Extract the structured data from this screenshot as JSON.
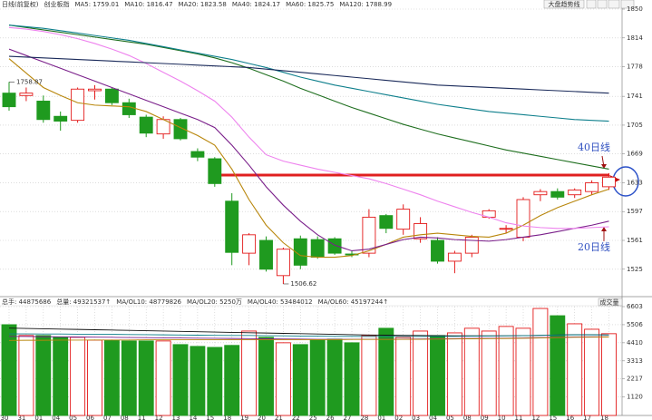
{
  "chart_data": [
    {
      "type": "candlestick",
      "header": [
        "日线(前复权)",
        "创业板指"
      ],
      "toolbar": [
        "大盘趋势线"
      ],
      "categories": [
        "30",
        "31",
        "01",
        "04",
        "05",
        "06",
        "07",
        "08",
        "11",
        "12",
        "13",
        "14",
        "15",
        "18",
        "19",
        "20",
        "21",
        "22",
        "25",
        "26",
        "27",
        "28",
        "01",
        "02",
        "03",
        "04",
        "05",
        "08",
        "09",
        "10",
        "11",
        "12",
        "15",
        "16",
        "17",
        "18"
      ],
      "open": [
        1745,
        1742,
        1735,
        1716,
        1711,
        1748,
        1750,
        1733,
        1715,
        1694,
        1712,
        1672,
        1663,
        1610,
        1545,
        1561,
        1517,
        1563,
        1562,
        1563,
        1544,
        1545,
        1592,
        1575,
        1563,
        1561,
        1535,
        1545,
        1590,
        1575,
        1565,
        1618,
        1622,
        1618,
        1622,
        1628
      ],
      "high": [
        1758.87,
        1752,
        1742,
        1722,
        1752,
        1755,
        1752,
        1738,
        1718,
        1716,
        1714,
        1676,
        1665,
        1620,
        1570,
        1566,
        1552,
        1567,
        1566,
        1565,
        1548,
        1600,
        1594,
        1606,
        1590,
        1565,
        1548,
        1568,
        1600,
        1580,
        1615,
        1625,
        1626,
        1626,
        1636,
        1645
      ],
      "low": [
        1723,
        1735,
        1708,
        1698,
        1708,
        1737,
        1730,
        1714,
        1690,
        1688,
        1686,
        1660,
        1628,
        1530,
        1530,
        1522,
        1506.62,
        1525,
        1538,
        1543,
        1540,
        1540,
        1570,
        1568,
        1558,
        1532,
        1520,
        1540,
        1588,
        1570,
        1560,
        1610,
        1612,
        1614,
        1618,
        1624
      ],
      "close": [
        1728,
        1745,
        1712,
        1710,
        1750,
        1750,
        1733,
        1718,
        1695,
        1712,
        1688,
        1665,
        1632,
        1546,
        1568,
        1525,
        1550,
        1530,
        1540,
        1545,
        1543,
        1590,
        1576,
        1600,
        1582,
        1535,
        1545,
        1565,
        1598,
        1576,
        1612,
        1622,
        1615,
        1624,
        1633,
        1640
      ],
      "up_color": "#e31a1a",
      "down_color": "#1f9a1f",
      "series": [
        {
          "name": "MA5: 1759.01",
          "color": "#b8860b",
          "values": [
            1788,
            1770,
            1752,
            1742,
            1733,
            1730,
            1729,
            1728,
            1722,
            1712,
            1702,
            1692,
            1680,
            1650,
            1612,
            1580,
            1558,
            1542,
            1540,
            1540,
            1542,
            1548,
            1556,
            1565,
            1568,
            1570,
            1568,
            1566,
            1565,
            1570,
            1580,
            1592,
            1602,
            1610,
            1618,
            1625
          ]
        },
        {
          "name": "MA10: 1816.47",
          "color": "#7a1f8a",
          "values": [
            1800,
            1792,
            1784,
            1776,
            1768,
            1760,
            1752,
            1744,
            1736,
            1728,
            1720,
            1712,
            1702,
            1680,
            1655,
            1628,
            1605,
            1585,
            1568,
            1555,
            1548,
            1550,
            1556,
            1562,
            1565,
            1564,
            1562,
            1561,
            1560,
            1562,
            1565,
            1568,
            1572,
            1576,
            1580,
            1585
          ]
        },
        {
          "name": "MA20: 1823.58",
          "color": "#ee82ee",
          "values": [
            1827,
            1825,
            1822,
            1818,
            1813,
            1807,
            1800,
            1792,
            1782,
            1771,
            1760,
            1748,
            1735,
            1715,
            1690,
            1668,
            1660,
            1655,
            1650,
            1646,
            1642,
            1638,
            1632,
            1625,
            1618,
            1610,
            1603,
            1596,
            1590,
            1583,
            1579,
            1577,
            1576,
            1576,
            1577,
            1578
          ]
        },
        {
          "name": "MA40: 1824.17",
          "color": "#1e6e1e",
          "values": [
            1830,
            1827,
            1824,
            1821,
            1818,
            1815,
            1812,
            1809,
            1806,
            1802,
            1798,
            1794,
            1789,
            1783,
            1776,
            1768,
            1760,
            1751,
            1743,
            1735,
            1727,
            1720,
            1713,
            1706,
            1700,
            1694,
            1689,
            1684,
            1679,
            1674,
            1670,
            1666,
            1662,
            1658,
            1654,
            1650
          ]
        },
        {
          "name": "MA60: 1825.75",
          "color": "#0e7f8c",
          "values": [
            1830,
            1828,
            1826,
            1823,
            1820,
            1817,
            1814,
            1811,
            1807,
            1803,
            1799,
            1795,
            1791,
            1787,
            1782,
            1777,
            1771,
            1765,
            1760,
            1755,
            1751,
            1747,
            1743,
            1739,
            1735,
            1731,
            1728,
            1725,
            1722,
            1720,
            1718,
            1716,
            1714,
            1712,
            1711,
            1710
          ]
        },
        {
          "name": "MA120: 1788.99",
          "color": "#1a2a5a",
          "values": [
            1791,
            1790,
            1789,
            1788,
            1787,
            1786,
            1785,
            1784,
            1783,
            1782,
            1781,
            1780,
            1779,
            1778,
            1777,
            1775,
            1773,
            1771,
            1769,
            1767,
            1765,
            1763,
            1761,
            1759,
            1757,
            1755,
            1754,
            1753,
            1752,
            1751,
            1750,
            1749,
            1748,
            1747,
            1746,
            1745
          ]
        }
      ],
      "annotations": [
        "40日线",
        "20日线"
      ],
      "ylim": [
        1493,
        1850
      ],
      "yticks": [
        1850,
        1814,
        1778,
        1741,
        1705,
        1669,
        1633,
        1597,
        1561,
        1525
      ],
      "grid": true
    },
    {
      "type": "bar",
      "header": [
        "总手: 44875686",
        "总量: 49321537↑"
      ],
      "selector": "成交量",
      "values": [
        5506,
        4850,
        4850,
        4740,
        4740,
        4570,
        4570,
        4520,
        4520,
        4520,
        4300,
        4190,
        4130,
        4250,
        5120,
        4740,
        4410,
        4300,
        4570,
        4630,
        4410,
        4850,
        5290,
        4740,
        5120,
        4850,
        5010,
        5290,
        5120,
        5400,
        5290,
        6490,
        6050,
        5560,
        5230,
        4960
      ],
      "series": [
        {
          "name": "MA/OL10: 48779826",
          "color": "#111111",
          "values": [
            5300,
            5280,
            5260,
            5240,
            5220,
            5200,
            5180,
            5160,
            5140,
            5120,
            5100,
            5080,
            5060,
            5040,
            5020,
            5000,
            4980,
            4960,
            4940,
            4920,
            4900,
            4880,
            4870,
            4860,
            4850,
            4840,
            4830,
            4830,
            4830,
            4830,
            4840,
            4860,
            4880,
            4900,
            4900,
            4880
          ]
        },
        {
          "name": "MA/OL20: 5250万",
          "color": "#0e7f8c",
          "values": [
            4950,
            4950,
            4940,
            4940,
            4930,
            4930,
            4920,
            4910,
            4900,
            4890,
            4880,
            4870,
            4860,
            4850,
            4850,
            4840,
            4830,
            4820,
            4810,
            4800,
            4800,
            4790,
            4790,
            4790,
            4790,
            4800,
            4800,
            4810,
            4820,
            4830,
            4840,
            4860,
            4880,
            4890,
            4890,
            4880
          ]
        },
        {
          "name": "MA/OL40: 53484012",
          "color": "#7a1f8a",
          "values": [
            4800,
            4790,
            4780,
            4770,
            4760,
            4750,
            4740,
            4730,
            4720,
            4710,
            4700,
            4690,
            4680,
            4670,
            4660,
            4650,
            4640,
            4630,
            4620,
            4620,
            4620,
            4620,
            4620,
            4630,
            4640,
            4650,
            4660,
            4670,
            4680,
            4690,
            4700,
            4720,
            4740,
            4760,
            4770,
            4770
          ]
        },
        {
          "name": "MA/OL60: 45197244↑",
          "color": "#b8860b",
          "values": [
            4550,
            4560,
            4560,
            4570,
            4570,
            4580,
            4580,
            4580,
            4590,
            4590,
            4590,
            4590,
            4590,
            4590,
            4600,
            4600,
            4600,
            4600,
            4600,
            4600,
            4610,
            4610,
            4610,
            4620,
            4620,
            4630,
            4640,
            4650,
            4660,
            4670,
            4680,
            4700,
            4720,
            4740,
            4750,
            4760
          ]
        }
      ],
      "ylim": [
        0,
        6603
      ],
      "yticks": [
        6603,
        5506,
        4410,
        3313,
        2217,
        1120
      ],
      "grid": true
    }
  ]
}
